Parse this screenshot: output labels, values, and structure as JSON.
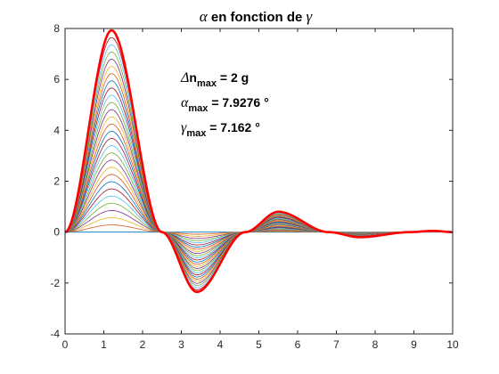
{
  "chart_data": {
    "type": "line",
    "title": {
      "greek_1": "α",
      "text": " en fonction de ",
      "greek_2": "γ"
    },
    "xlabel": "",
    "ylabel": "",
    "xlim": [
      0,
      10
    ],
    "ylim": [
      -4,
      8
    ],
    "x_ticks": [
      "0",
      "1",
      "2",
      "3",
      "4",
      "5",
      "6",
      "7",
      "8",
      "9",
      "10"
    ],
    "y_ticks": [
      "-4",
      "-2",
      "0",
      "2",
      "4",
      "6",
      "8"
    ],
    "grid": false,
    "box": true,
    "family_description_curves": 28,
    "envelope": {
      "color": "#ff0000",
      "peaks": [
        {
          "x": 1.2,
          "y": 7.9276
        },
        {
          "x": 3.4,
          "y": -2.35
        },
        {
          "x": 5.5,
          "y": 0.8
        },
        {
          "x": 7.6,
          "y": -0.2
        },
        {
          "x": 9.5,
          "y": 0.05
        }
      ],
      "zero_crossings": [
        0,
        2.5,
        4.65,
        6.8,
        8.9
      ]
    },
    "series_colors": [
      "#0072bd",
      "#d95319",
      "#edb120",
      "#7e2f8e",
      "#77ac30",
      "#4dbeee",
      "#a2142f"
    ],
    "annotations": [
      {
        "greek": "Δ",
        "main": "n",
        "sub": "max",
        "value": " = 2 g"
      },
      {
        "greek": "α",
        "main": "",
        "sub": "max",
        "value": " = 7.9276 °"
      },
      {
        "greek": "γ",
        "main": "",
        "sub": "max",
        "value": " = 7.162 °"
      }
    ]
  }
}
